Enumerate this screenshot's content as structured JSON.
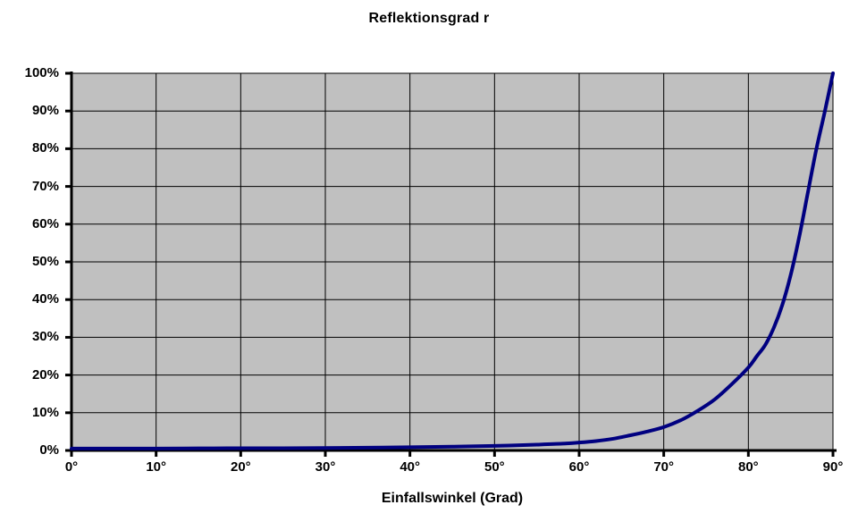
{
  "page": {
    "background_color": "#ffffff",
    "text_color": "#000000"
  },
  "chart_data": {
    "type": "line",
    "title": "Reflektionsgrad r",
    "xlabel": "Einfallswinkel (Grad)",
    "ylabel": "",
    "xlim_deg": [
      0,
      90
    ],
    "ylim_pct": [
      0,
      100
    ],
    "x_tick_step_deg": 10,
    "y_tick_step_pct": 10,
    "x_tick_labels": [
      "0°",
      "10°",
      "20°",
      "30°",
      "40°",
      "50°",
      "60°",
      "70°",
      "80°",
      "90°"
    ],
    "y_tick_labels": [
      "0%",
      "10%",
      "20%",
      "30%",
      "40%",
      "50%",
      "60%",
      "70%",
      "80%",
      "90%",
      "100%"
    ],
    "grid": true,
    "legend_position": "none",
    "plot_bg_color": "#c0c0c0",
    "grid_color": "#000000",
    "axis_color": "#000000",
    "series": [
      {
        "name": "Reflektionsgrad r",
        "color": "#000080",
        "points_deg_pct": [
          [
            0,
            0.5
          ],
          [
            5,
            0.5
          ],
          [
            10,
            0.5
          ],
          [
            15,
            0.55
          ],
          [
            20,
            0.6
          ],
          [
            25,
            0.6
          ],
          [
            30,
            0.65
          ],
          [
            35,
            0.75
          ],
          [
            40,
            0.85
          ],
          [
            45,
            1.0
          ],
          [
            50,
            1.2
          ],
          [
            55,
            1.55
          ],
          [
            58,
            1.8
          ],
          [
            60,
            2.1
          ],
          [
            62,
            2.5
          ],
          [
            64,
            3.1
          ],
          [
            66,
            4.0
          ],
          [
            68,
            5.0
          ],
          [
            70,
            6.2
          ],
          [
            72,
            8.0
          ],
          [
            74,
            10.5
          ],
          [
            76,
            13.5
          ],
          [
            78,
            17.5
          ],
          [
            80,
            22.0
          ],
          [
            81,
            25.0
          ],
          [
            82,
            28.0
          ],
          [
            83,
            32.5
          ],
          [
            84,
            38.5
          ],
          [
            85,
            46.5
          ],
          [
            86,
            56.5
          ],
          [
            87,
            68.0
          ],
          [
            88,
            79.5
          ],
          [
            89,
            89.5
          ],
          [
            90,
            100.0
          ]
        ]
      }
    ]
  }
}
